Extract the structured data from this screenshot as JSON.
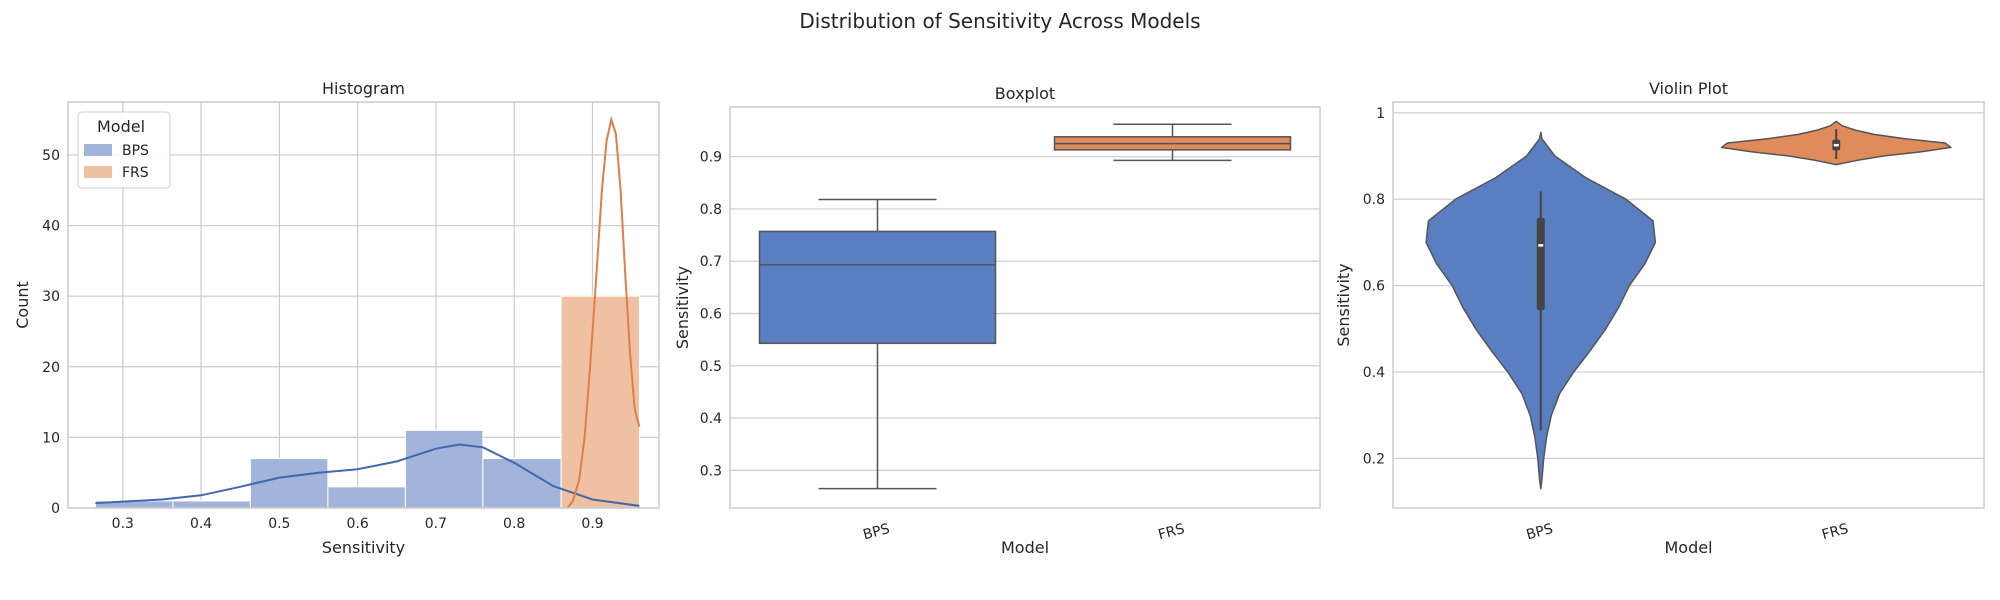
{
  "suptitle": "Distribution of Sensitivity Across Models",
  "colors": {
    "bps_fill": "#5a7ec2",
    "frs_fill": "#e08b5b",
    "bps_hist": "#a3b4da",
    "frs_hist": "#f0c0a2",
    "bps_kde": "#4169b0",
    "frs_kde": "#e07e45",
    "box_edge": "#555555",
    "inner_box": "#444444"
  },
  "chart_data": [
    {
      "type": "histogram",
      "title": "Histogram",
      "xlabel": "Sensitivity",
      "ylabel": "Count",
      "xlim": [
        0.23,
        0.985
      ],
      "ylim": [
        0,
        57.5
      ],
      "xticks": [
        0.3,
        0.4,
        0.5,
        0.6,
        0.7,
        0.8,
        0.9
      ],
      "yticks": [
        0,
        10,
        20,
        30,
        40,
        50
      ],
      "grid": true,
      "legend": {
        "title": "Model",
        "placement": "top-left",
        "entries": [
          "BPS",
          "FRS"
        ]
      },
      "series": [
        {
          "name": "BPS",
          "bins": [
            {
              "x0": 0.265,
              "x1": 0.364,
              "count": 1
            },
            {
              "x0": 0.364,
              "x1": 0.463,
              "count": 1
            },
            {
              "x0": 0.463,
              "x1": 0.562,
              "count": 7
            },
            {
              "x0": 0.562,
              "x1": 0.661,
              "count": 3
            },
            {
              "x0": 0.661,
              "x1": 0.76,
              "count": 11
            },
            {
              "x0": 0.76,
              "x1": 0.86,
              "count": 7
            }
          ],
          "kde": [
            [
              0.265,
              0.7
            ],
            [
              0.3,
              0.9
            ],
            [
              0.35,
              1.2
            ],
            [
              0.4,
              1.8
            ],
            [
              0.45,
              3.0
            ],
            [
              0.5,
              4.3
            ],
            [
              0.55,
              5.0
            ],
            [
              0.6,
              5.5
            ],
            [
              0.65,
              6.6
            ],
            [
              0.7,
              8.4
            ],
            [
              0.73,
              9.0
            ],
            [
              0.76,
              8.6
            ],
            [
              0.8,
              6.4
            ],
            [
              0.85,
              3.1
            ],
            [
              0.9,
              1.2
            ],
            [
              0.96,
              0.3
            ]
          ]
        },
        {
          "name": "FRS",
          "bins": [
            {
              "x0": 0.86,
              "x1": 0.96,
              "count": 30
            }
          ],
          "kde": [
            [
              0.868,
              0
            ],
            [
              0.875,
              1
            ],
            [
              0.883,
              4
            ],
            [
              0.89,
              10
            ],
            [
              0.897,
              20
            ],
            [
              0.905,
              33
            ],
            [
              0.912,
              45
            ],
            [
              0.918,
              52
            ],
            [
              0.924,
              55
            ],
            [
              0.93,
              53
            ],
            [
              0.936,
              45
            ],
            [
              0.942,
              33
            ],
            [
              0.948,
              22
            ],
            [
              0.954,
              14
            ],
            [
              0.96,
              11.5
            ]
          ]
        }
      ]
    },
    {
      "type": "box",
      "title": "Boxplot",
      "xlabel": "Model",
      "ylabel": "Sensitivity",
      "ylim": [
        0.228,
        0.995
      ],
      "yticks": [
        0.3,
        0.4,
        0.5,
        0.6,
        0.7,
        0.8,
        0.9
      ],
      "categories": [
        "BPS",
        "FRS"
      ],
      "grid": true,
      "series": [
        {
          "category": "BPS",
          "min": 0.265,
          "q1": 0.543,
          "median": 0.693,
          "q3": 0.757,
          "max": 0.818
        },
        {
          "category": "FRS",
          "min": 0.893,
          "q1": 0.913,
          "median": 0.925,
          "q3": 0.938,
          "max": 0.962
        }
      ]
    },
    {
      "type": "violin",
      "title": "Violin Plot",
      "xlabel": "Model",
      "ylabel": "Sensitivity",
      "ylim": [
        0.085,
        1.025
      ],
      "yticks": [
        0.2,
        0.4,
        0.6,
        0.8,
        1.0
      ],
      "categories": [
        "BPS",
        "FRS"
      ],
      "grid": true,
      "series": [
        {
          "category": "BPS",
          "profile": [
            [
              0.13,
              0
            ],
            [
              0.15,
              0.01
            ],
            [
              0.2,
              0.025
            ],
            [
              0.25,
              0.05
            ],
            [
              0.3,
              0.09
            ],
            [
              0.35,
              0.16
            ],
            [
              0.4,
              0.28
            ],
            [
              0.45,
              0.42
            ],
            [
              0.5,
              0.55
            ],
            [
              0.55,
              0.66
            ],
            [
              0.6,
              0.75
            ],
            [
              0.65,
              0.88
            ],
            [
              0.7,
              0.97
            ],
            [
              0.75,
              0.95
            ],
            [
              0.8,
              0.72
            ],
            [
              0.85,
              0.38
            ],
            [
              0.9,
              0.12
            ],
            [
              0.94,
              0.01
            ],
            [
              0.955,
              0
            ]
          ],
          "inner": {
            "min": 0.265,
            "q1": 0.543,
            "median": 0.693,
            "q3": 0.757,
            "max": 0.818
          }
        },
        {
          "category": "FRS",
          "profile": [
            [
              0.88,
              0
            ],
            [
              0.89,
              0.18
            ],
            [
              0.9,
              0.4
            ],
            [
              0.91,
              0.72
            ],
            [
              0.92,
              0.97
            ],
            [
              0.93,
              0.92
            ],
            [
              0.94,
              0.58
            ],
            [
              0.95,
              0.32
            ],
            [
              0.96,
              0.16
            ],
            [
              0.97,
              0.05
            ],
            [
              0.98,
              0
            ]
          ],
          "inner": {
            "min": 0.893,
            "q1": 0.913,
            "median": 0.925,
            "q3": 0.938,
            "max": 0.962
          }
        }
      ]
    }
  ]
}
